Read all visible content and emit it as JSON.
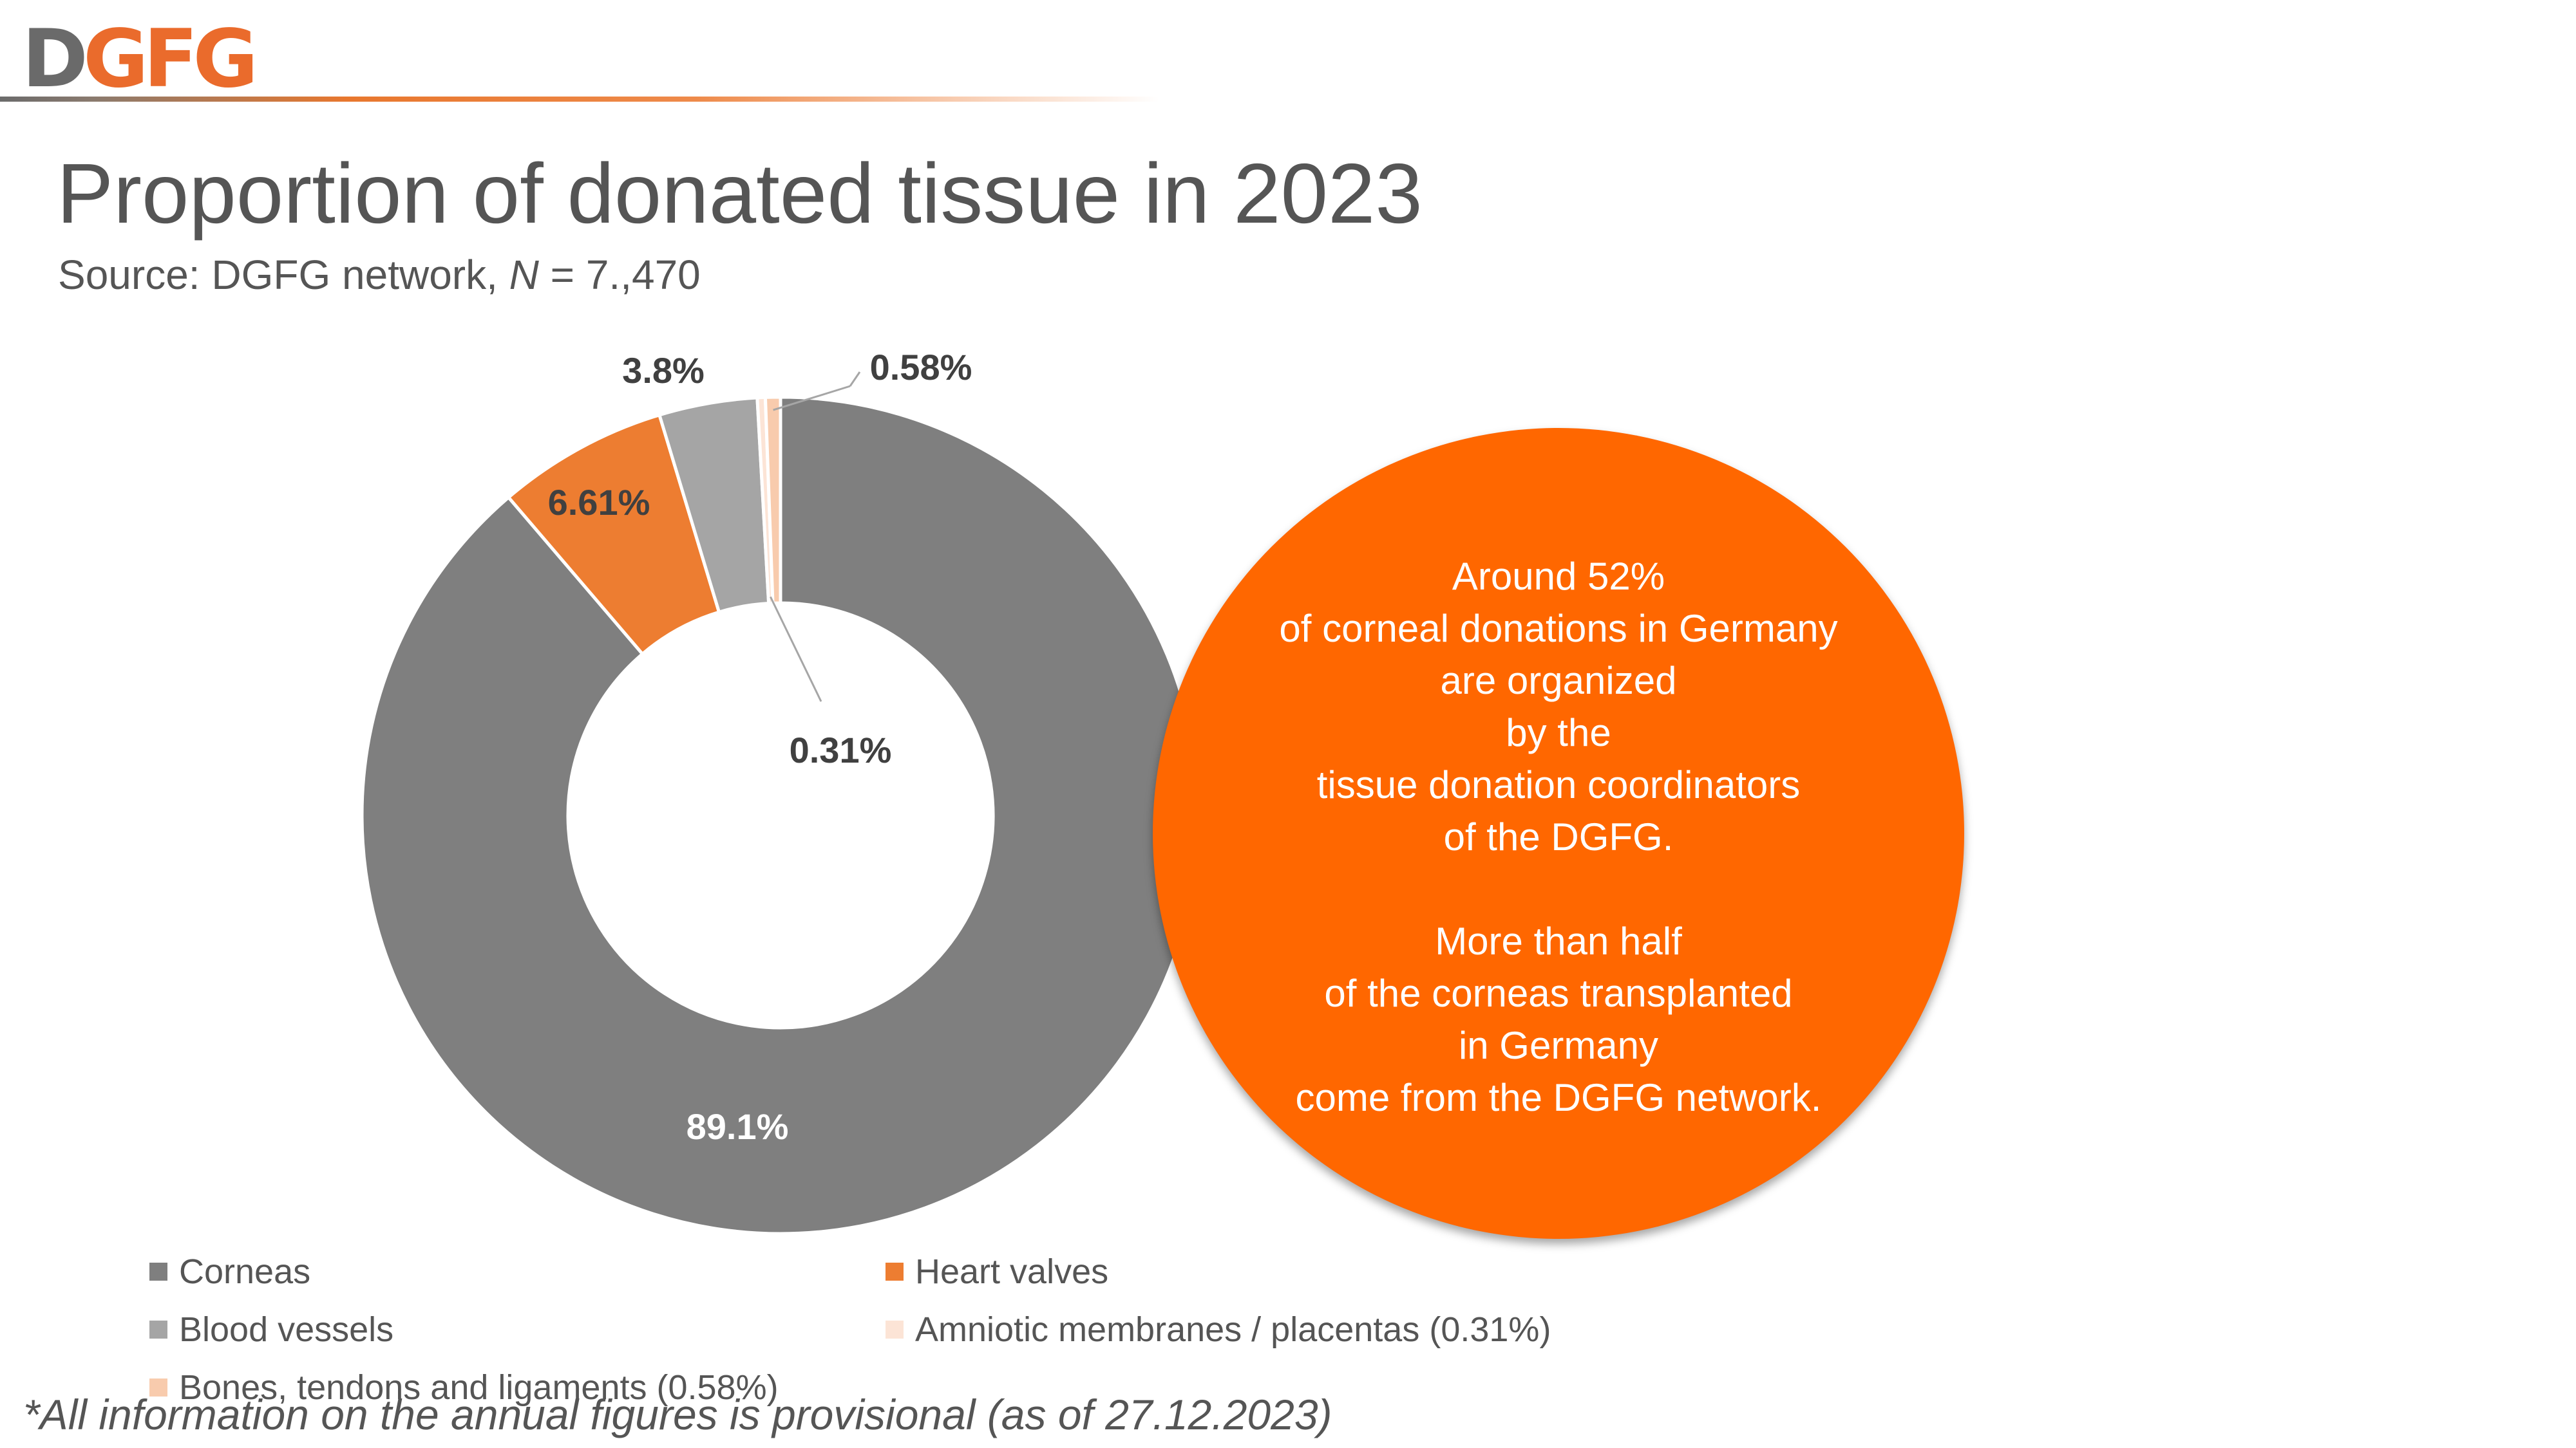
{
  "logo": {
    "first": "D",
    "rest": "GFG"
  },
  "title": "Proportion of donated tissue in 2023",
  "subtitle": {
    "prefix": "Source: DGFG network, ",
    "n": "N",
    "suffix": " = 7.,470"
  },
  "chart_data": {
    "type": "pie",
    "subtype": "donut",
    "title": "Proportion of donated tissue in 2023",
    "categories": [
      "Corneas",
      "Heart valves",
      "Blood vessels",
      "Amniotic membranes / placentas (0.31%)",
      "Bones, tendons and ligaments (0.58%)"
    ],
    "values": [
      89.1,
      6.61,
      3.8,
      0.31,
      0.58
    ],
    "data_labels": [
      "89.1%",
      "6.61%",
      "3.8%",
      "0.31%",
      "0.58%"
    ],
    "colors": [
      "#7f7f7f",
      "#ed7d31",
      "#a5a5a5",
      "#fce4d6",
      "#f8cbad"
    ],
    "legend_position": "bottom"
  },
  "callout": {
    "lines": [
      "Around 52%",
      "of corneal donations in Germany",
      "are organized",
      "by the",
      "tissue donation coordinators",
      "of the DGFG.",
      "",
      "More than half",
      "of the corneas transplanted",
      "in Germany",
      "come from the DGFG network."
    ],
    "color": "#ff6700"
  },
  "legend": {
    "items": [
      {
        "label": "Corneas",
        "color": "#7f7f7f"
      },
      {
        "label": "Heart valves",
        "color": "#ed7d31"
      },
      {
        "label": "Blood vessels",
        "color": "#a5a5a5"
      },
      {
        "label": "Amniotic membranes / placentas (0.31%)",
        "color": "#fce4d6"
      },
      {
        "label": "Bones, tendons and ligaments (0.58%)",
        "color": "#f8cbad"
      }
    ]
  },
  "footnote": "*All information on the annual figures is provisional (as of 27.12.2023)"
}
